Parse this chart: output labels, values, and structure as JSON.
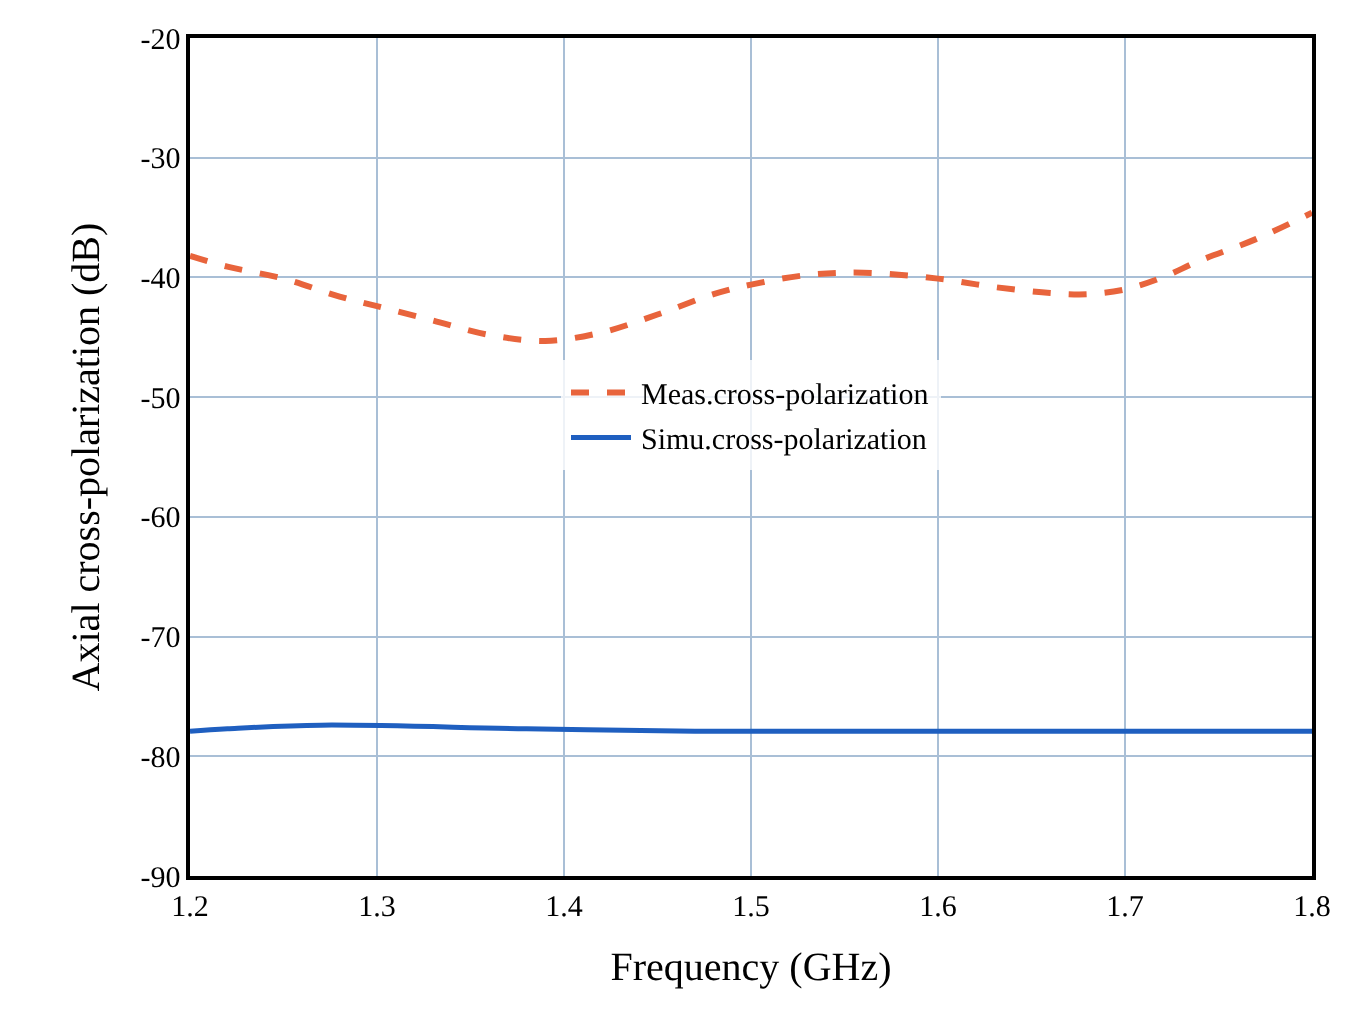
{
  "chart_data": {
    "type": "line",
    "xlabel": "Frequency (GHz)",
    "ylabel": "Axial cross-polarization (dB)",
    "xlim": [
      1.2,
      1.8
    ],
    "xticks": [
      1.2,
      1.3,
      1.4,
      1.5,
      1.6,
      1.7,
      1.8
    ],
    "ylim": [
      -90,
      -20
    ],
    "yticks": [
      -90,
      -80,
      -70,
      -60,
      -50,
      -40,
      -30,
      -20
    ],
    "grid": true,
    "legend": "center",
    "marker": "none",
    "series": [
      {
        "name": "Meas.cross-polarization",
        "color": "#e8643c",
        "line_style": "dashed",
        "x": [
          1.2,
          1.22,
          1.25,
          1.28,
          1.3,
          1.33,
          1.36,
          1.39,
          1.42,
          1.45,
          1.48,
          1.5,
          1.53,
          1.56,
          1.6,
          1.63,
          1.66,
          1.68,
          1.7,
          1.72,
          1.74,
          1.77,
          1.8
        ],
        "values": [
          -38.2,
          -39.1,
          -40.1,
          -41.6,
          -42.4,
          -43.6,
          -44.8,
          -45.3,
          -44.6,
          -43.1,
          -41.4,
          -40.6,
          -39.8,
          -39.6,
          -40.1,
          -40.8,
          -41.3,
          -41.4,
          -41.0,
          -40.0,
          -38.6,
          -36.8,
          -34.6
        ]
      },
      {
        "name": "Simu.cross-polarization",
        "color": "#1f5fc0",
        "line_style": "solid",
        "x": [
          1.2,
          1.22,
          1.27,
          1.38,
          1.47,
          1.8
        ],
        "values": [
          -77.9,
          -77.7,
          -77.4,
          -77.7,
          -77.9,
          -77.9
        ]
      }
    ]
  }
}
